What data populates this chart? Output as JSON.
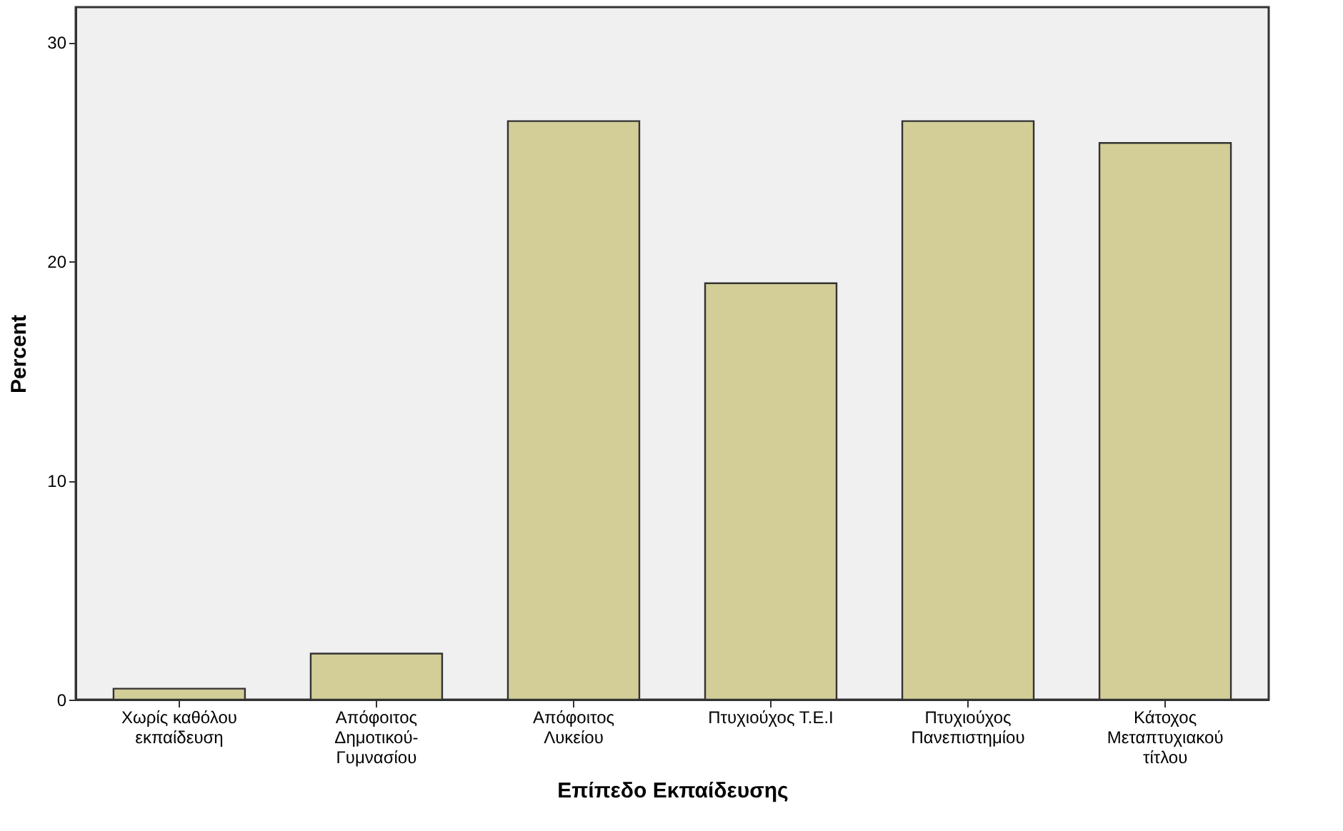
{
  "chart_data": {
    "type": "bar",
    "xlabel": "Επίπεδο Εκπαίδευσης",
    "ylabel": "Percent",
    "categories": [
      "Χωρίς καθόλου\nεκπαίδευση",
      "Απόφοιτος\nΔημοτικού-\nΓυμνασίου",
      "Απόφοιτος\nΛυκείου",
      "Πτυχιούχος Τ.Ε.Ι",
      "Πτυχιούχος\nΠανεπιστημίου",
      "Κάτοχος\nΜεταπτυχιακού\nτίτλου"
    ],
    "values": [
      0.5,
      2.1,
      26.4,
      19.0,
      26.4,
      25.4
    ],
    "color": "#d3ce98",
    "ylim": [
      0,
      31.6
    ],
    "yticks": [
      0,
      10,
      20,
      30
    ],
    "grid": false
  }
}
